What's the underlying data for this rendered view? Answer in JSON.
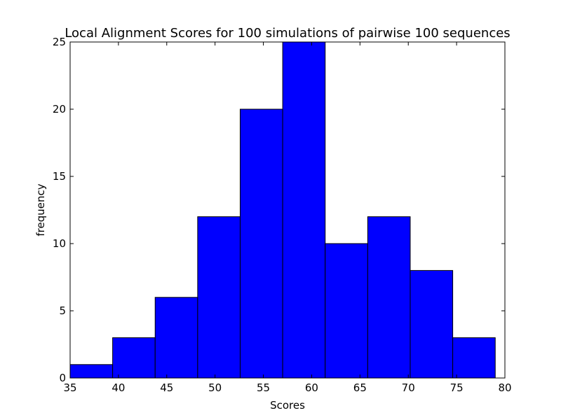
{
  "chart_data": {
    "type": "bar",
    "title": "Local Alignment Scores for 100 simulations of pairwise 100 sequences",
    "xlabel": "Scores",
    "ylabel": "frequency",
    "xlim": [
      35,
      80
    ],
    "ylim": [
      0,
      25
    ],
    "xticks": [
      35,
      40,
      45,
      50,
      55,
      60,
      65,
      70,
      75,
      80
    ],
    "yticks": [
      0,
      5,
      10,
      15,
      20,
      25
    ],
    "bin_edges": [
      35,
      39.4,
      43.8,
      48.2,
      52.6,
      57.0,
      61.4,
      65.8,
      70.2,
      74.6,
      79.0
    ],
    "values": [
      1,
      3,
      6,
      12,
      20,
      25,
      10,
      12,
      8,
      3
    ],
    "bar_color": "#0000ff",
    "edge_color": "#000000",
    "grid": false,
    "legend": "none"
  }
}
